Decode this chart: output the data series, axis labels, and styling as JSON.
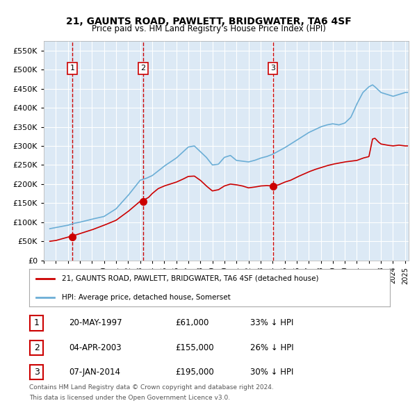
{
  "title": "21, GAUNTS ROAD, PAWLETT, BRIDGWATER, TA6 4SF",
  "subtitle": "Price paid vs. HM Land Registry's House Price Index (HPI)",
  "legend_line1": "21, GAUNTS ROAD, PAWLETT, BRIDGWATER, TA6 4SF (detached house)",
  "legend_line2": "HPI: Average price, detached house, Somerset",
  "footer1": "Contains HM Land Registry data © Crown copyright and database right 2024.",
  "footer2": "This data is licensed under the Open Government Licence v3.0.",
  "table_rows": [
    [
      "1",
      "20-MAY-1997",
      "£61,000",
      "33% ↓ HPI"
    ],
    [
      "2",
      "04-APR-2003",
      "£155,000",
      "26% ↓ HPI"
    ],
    [
      "3",
      "07-JAN-2014",
      "£195,000",
      "30% ↓ HPI"
    ]
  ],
  "sale_dates": [
    1997.38,
    2003.25,
    2014.02
  ],
  "sale_prices": [
    61000,
    155000,
    195000
  ],
  "hpi_color": "#6baed6",
  "price_color": "#cc0000",
  "background_color": "#dce9f5",
  "grid_color": "#ffffff",
  "vline_color": "#cc0000",
  "ylim": [
    0,
    575000
  ],
  "xlim_start": 1995.5,
  "xlim_end": 2025.3
}
